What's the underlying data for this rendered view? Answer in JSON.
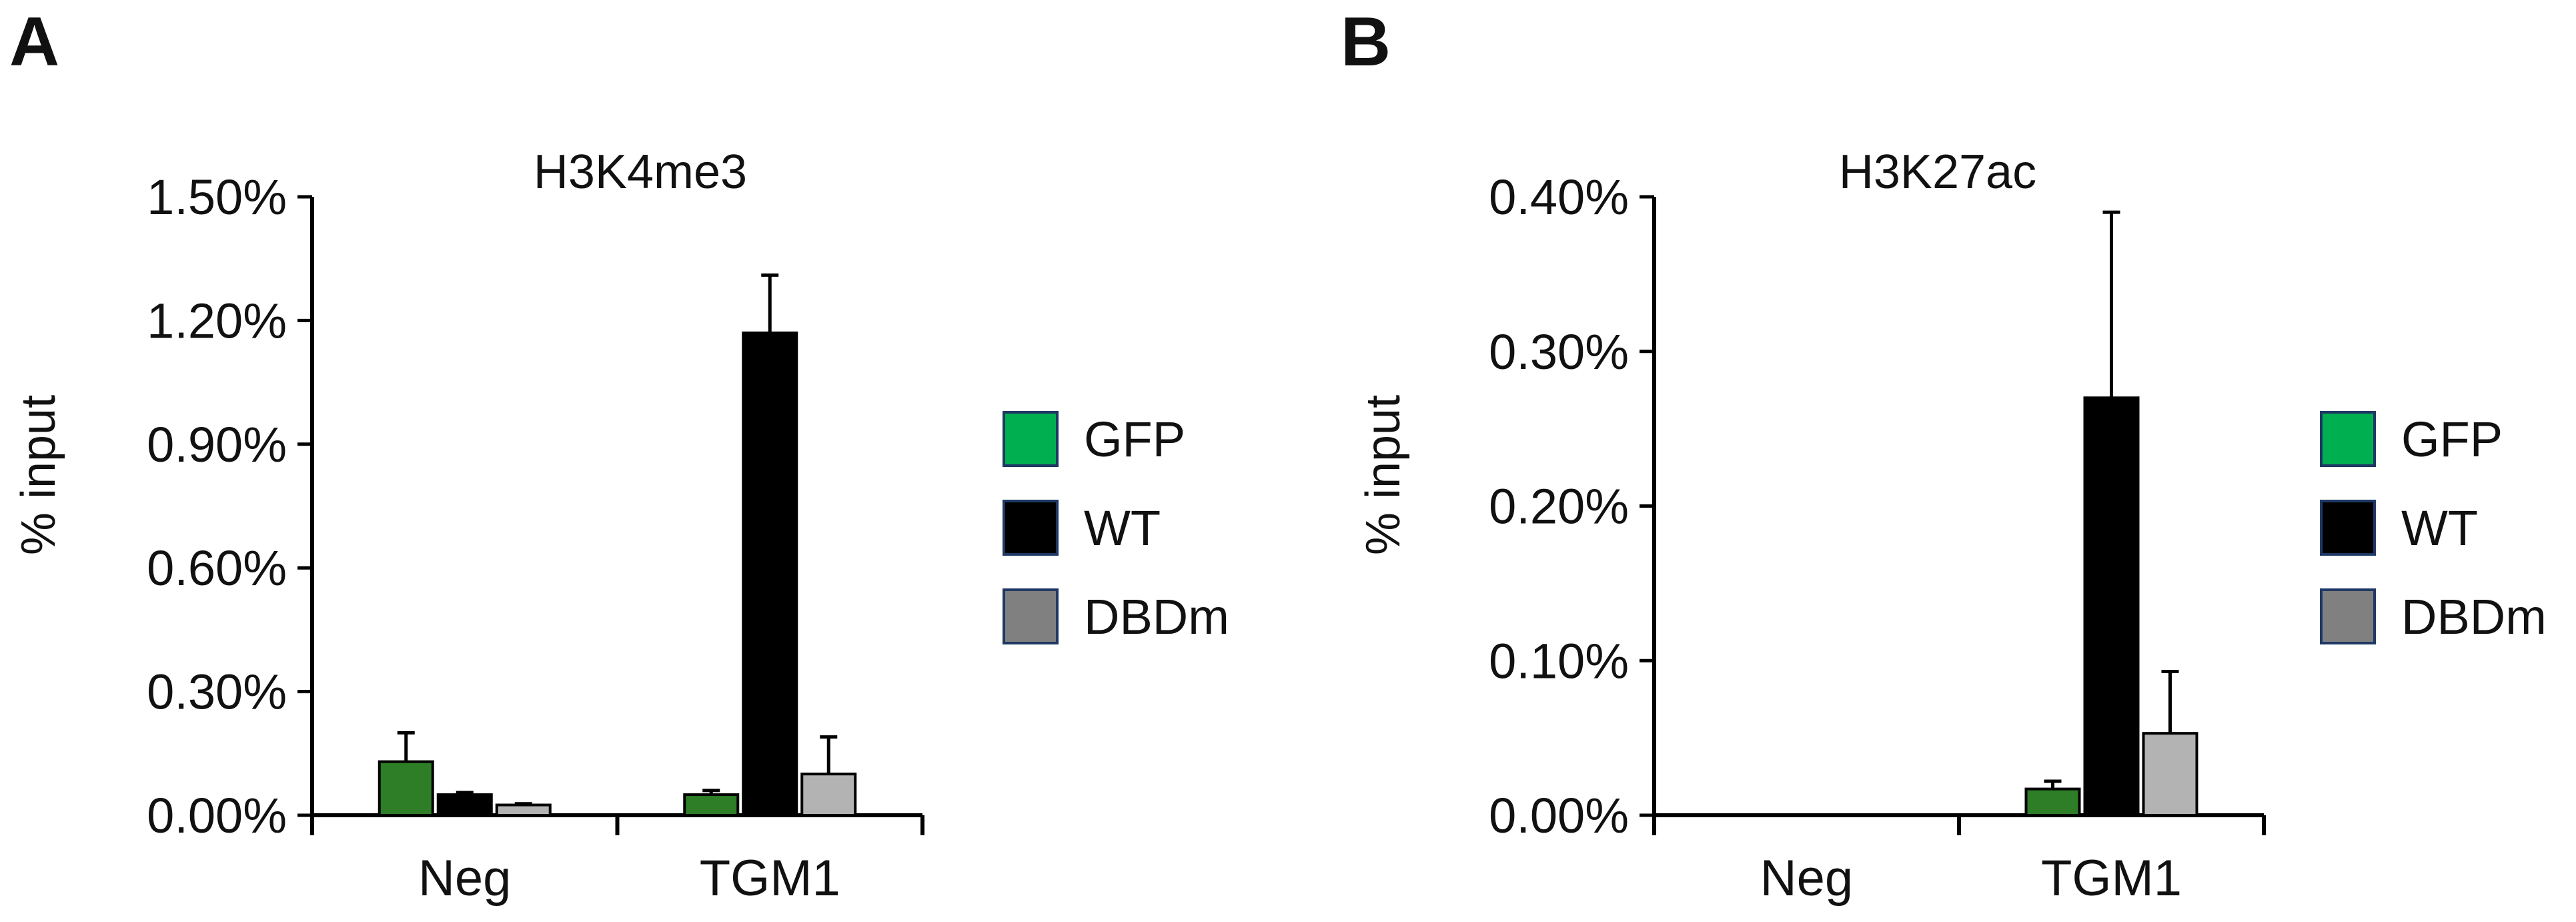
{
  "chart_data": [
    {
      "panel_label": "A",
      "type": "bar",
      "title": "H3K4me3",
      "xlabel": "",
      "ylabel": "% input",
      "ylim": [
        0,
        1.5
      ],
      "yticks": [
        0,
        0.3,
        0.6,
        0.9,
        1.2,
        1.5
      ],
      "ytick_labels": [
        "0.00%",
        "0.30%",
        "0.60%",
        "0.90%",
        "1.20%",
        "1.50%"
      ],
      "categories": [
        "Neg",
        "TGM1"
      ],
      "series": [
        {
          "name": "GFP",
          "values": [
            0.13,
            0.05
          ],
          "errors": [
            0.07,
            0.01
          ]
        },
        {
          "name": "WT",
          "values": [
            0.05,
            1.17
          ],
          "errors": [
            0.005,
            0.14
          ]
        },
        {
          "name": "DBDm",
          "values": [
            0.025,
            0.1
          ],
          "errors": [
            0.003,
            0.09
          ]
        }
      ],
      "legend_position": "right"
    },
    {
      "panel_label": "B",
      "type": "bar",
      "title": "H3K27ac",
      "xlabel": "",
      "ylabel": "% input",
      "ylim": [
        0,
        0.4
      ],
      "yticks": [
        0,
        0.1,
        0.2,
        0.3,
        0.4
      ],
      "ytick_labels": [
        "0.00%",
        "0.10%",
        "0.20%",
        "0.30%",
        "0.40%"
      ],
      "categories": [
        "Neg",
        "TGM1"
      ],
      "series": [
        {
          "name": "GFP",
          "values": [
            0.0,
            0.017
          ],
          "errors": [
            0,
            0.005
          ]
        },
        {
          "name": "WT",
          "values": [
            0.0,
            0.27
          ],
          "errors": [
            0,
            0.12
          ]
        },
        {
          "name": "DBDm",
          "values": [
            0.0,
            0.053
          ],
          "errors": [
            0,
            0.04
          ]
        }
      ],
      "legend_position": "right"
    }
  ],
  "legend_colors": {
    "GFP": "#00b050",
    "WT": "#000000",
    "DBDm": "#808080"
  },
  "bar_colors": {
    "GFP": "#2e7d27",
    "WT": "#000000",
    "DBDm": "#b3b3b3"
  },
  "legend_border_color": "#1f3864"
}
